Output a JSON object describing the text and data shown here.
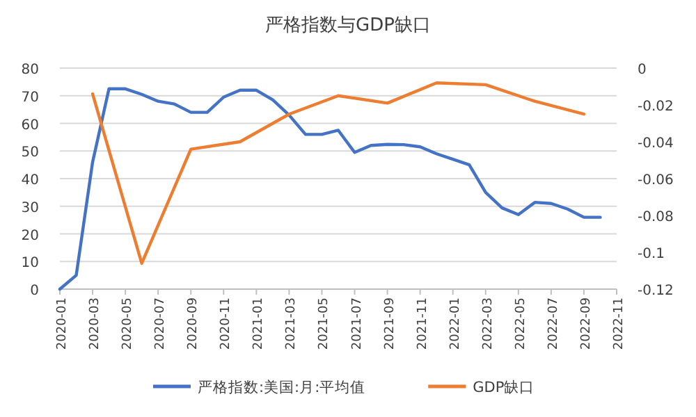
{
  "chart_data": {
    "type": "line",
    "title": "严格指数与GDP缺口",
    "xlim": [
      "2020-01",
      "2022-11"
    ],
    "xticks": [
      "2020-01",
      "2020-03",
      "2020-05",
      "2020-07",
      "2020-09",
      "2020-11",
      "2021-01",
      "2021-03",
      "2021-05",
      "2021-07",
      "2021-09",
      "2021-11",
      "2022-01",
      "2022-03",
      "2022-05",
      "2022-07",
      "2022-09",
      "2022-11"
    ],
    "ylim": [
      0,
      80
    ],
    "yticks": [
      0,
      10,
      20,
      30,
      40,
      50,
      60,
      70,
      80
    ],
    "y2lim": [
      -0.12,
      0
    ],
    "y2ticks": [
      -0.12,
      -0.1,
      -0.08,
      -0.06,
      -0.04,
      -0.02,
      0
    ],
    "grid": "y",
    "legend": "bottom",
    "marker": "none",
    "line_style": "solid",
    "series": [
      {
        "name": "严格指数:美国:月:平均值",
        "color": "#4472c4",
        "x": [
          "2020-01",
          "2020-02",
          "2020-03",
          "2020-04",
          "2020-05",
          "2020-06",
          "2020-07",
          "2020-08",
          "2020-09",
          "2020-10",
          "2020-11",
          "2020-12",
          "2021-01",
          "2021-02",
          "2021-03",
          "2021-04",
          "2021-05",
          "2021-06",
          "2021-07",
          "2021-08",
          "2021-09",
          "2021-10",
          "2021-11",
          "2021-12",
          "2022-01",
          "2022-02",
          "2022-03",
          "2022-04",
          "2022-05",
          "2022-06",
          "2022-07",
          "2022-08",
          "2022-09",
          "2022-10"
        ],
        "values": [
          0,
          5,
          46,
          72.5,
          72.5,
          70.5,
          68,
          67,
          64,
          64,
          69.5,
          72,
          72,
          68.5,
          63,
          56,
          56,
          57.5,
          49.5,
          52,
          52.4,
          52.3,
          51.5,
          49,
          47,
          45,
          35,
          29.4,
          27,
          31.4,
          31,
          29,
          26,
          26
        ]
      },
      {
        "name": "GDP缺口",
        "color": "#ed7d31",
        "axis": "y2",
        "x": [
          "2020-03",
          "2020-06",
          "2020-09",
          "2020-12",
          "2021-03",
          "2021-06",
          "2021-09",
          "2021-12",
          "2022-03",
          "2022-06",
          "2022-09"
        ],
        "values": [
          -0.014,
          -0.106,
          -0.044,
          -0.04,
          -0.025,
          -0.015,
          -0.019,
          -0.008,
          -0.009,
          -0.018,
          -0.025
        ]
      }
    ]
  }
}
